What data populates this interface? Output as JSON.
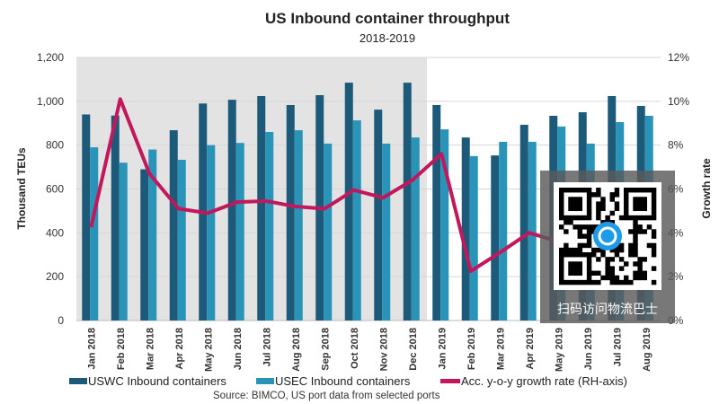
{
  "chart_data": {
    "type": "bar",
    "title": "US Inbound container throughput",
    "subtitle": "2018-2019",
    "ylabel": "Thousand TEUs",
    "y2label": "Growth rate",
    "ylim": [
      0,
      1200
    ],
    "y2lim": [
      0,
      12
    ],
    "yticks": [
      "0",
      "200",
      "400",
      "600",
      "800",
      "1,000",
      "1,200"
    ],
    "y2ticks": [
      "0%",
      "2%",
      "4%",
      "6%",
      "8%",
      "10%",
      "12%"
    ],
    "grid": true,
    "legend_position": "bottom",
    "shaded_region": [
      "Jan 2018",
      "Dec 2018"
    ],
    "categories": [
      "Jan 2018",
      "Feb 2018",
      "Mar 2018",
      "Apr 2018",
      "May 2018",
      "Jun 2018",
      "Jul 2018",
      "Aug 2018",
      "Sep 2018",
      "Oct 2018",
      "Nov 2018",
      "Dec 2018",
      "Jan 2019",
      "Feb 2019",
      "Mar 2019",
      "Apr 2019",
      "May 2019",
      "Jun 2019",
      "Jul 2019",
      "Aug 2019"
    ],
    "series": [
      {
        "name": "USWC Inbound containers",
        "type": "bar",
        "axis": "left",
        "color": "#1d5a7a",
        "values": [
          940,
          935,
          690,
          868,
          990,
          1007,
          1024,
          983,
          1028,
          1085,
          962,
          1085,
          983,
          835,
          753,
          893,
          934,
          950,
          1024,
          979
        ]
      },
      {
        "name": "USEC Inbound containers",
        "type": "bar",
        "axis": "left",
        "color": "#2a93b8",
        "values": [
          790,
          720,
          780,
          733,
          800,
          810,
          860,
          868,
          807,
          913,
          807,
          835,
          872,
          750,
          815,
          815,
          885,
          807,
          905,
          934
        ]
      },
      {
        "name": "Acc. y-o-y growth rate (RH-axis)",
        "type": "line",
        "axis": "right",
        "color": "#c2185b",
        "values": [
          4.25,
          10.1,
          6.7,
          5.1,
          4.9,
          5.4,
          5.45,
          5.2,
          5.1,
          5.95,
          5.6,
          6.4,
          7.6,
          2.25,
          3.1,
          4.0,
          3.6,
          null,
          null,
          null
        ]
      }
    ],
    "source": "Source: BIMCO, US port data from selected ports"
  },
  "watermark": {
    "text": "扫码访问物流巴士"
  }
}
